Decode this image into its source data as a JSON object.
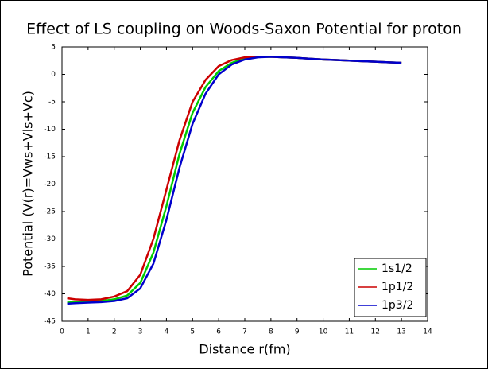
{
  "chart_data": {
    "type": "line",
    "title": "Effect of LS coupling on Woods-Saxon Potential for proton",
    "x_label": "Distance r(fm)",
    "y_label": "Potential (V(r)=Vws+Vls+Vc)",
    "x": [
      0.2,
      0.5,
      1,
      1.5,
      2,
      2.5,
      3,
      3.5,
      4,
      4.5,
      5,
      5.5,
      6,
      6.5,
      7,
      7.5,
      8,
      8.5,
      9,
      9.5,
      10,
      10.5,
      11,
      11.5,
      12,
      12.5,
      13
    ],
    "series": [
      {
        "name": "1s1/2",
        "color": "#00cc00",
        "values": [
          -41.6,
          -41.5,
          -41.4,
          -41.3,
          -41,
          -40.3,
          -38,
          -32.5,
          -24,
          -14.5,
          -7,
          -2.3,
          0.6,
          2.1,
          2.9,
          3.15,
          3.2,
          3.1,
          3.0,
          2.85,
          2.7,
          2.6,
          2.5,
          2.4,
          2.3,
          2.2,
          2.1
        ]
      },
      {
        "name": "1p1/2",
        "color": "#cc0000",
        "values": [
          -40.8,
          -41,
          -41.1,
          -41,
          -40.5,
          -39.5,
          -36.5,
          -30,
          -21,
          -12,
          -5,
          -1,
          1.5,
          2.6,
          3.1,
          3.2,
          3.2,
          3.1,
          3.0,
          2.85,
          2.7,
          2.6,
          2.5,
          2.4,
          2.3,
          2.2,
          2.1
        ]
      },
      {
        "name": "1p3/2",
        "color": "#0000cc",
        "values": [
          -41.8,
          -41.7,
          -41.6,
          -41.5,
          -41.3,
          -40.8,
          -39,
          -34.5,
          -26.5,
          -17,
          -9,
          -3.5,
          0,
          1.8,
          2.7,
          3.1,
          3.2,
          3.1,
          3.0,
          2.85,
          2.7,
          2.6,
          2.5,
          2.4,
          2.3,
          2.2,
          2.1
        ]
      }
    ],
    "xlim": [
      0,
      14
    ],
    "xticks": [
      0,
      1,
      2,
      3,
      4,
      5,
      6,
      7,
      8,
      9,
      10,
      11,
      12,
      13,
      14
    ],
    "ylim": [
      -45,
      5
    ],
    "yticks": [
      -45,
      -40,
      -35,
      -30,
      -25,
      -20,
      -15,
      -10,
      -5,
      0,
      5
    ],
    "legend": "lower right"
  }
}
